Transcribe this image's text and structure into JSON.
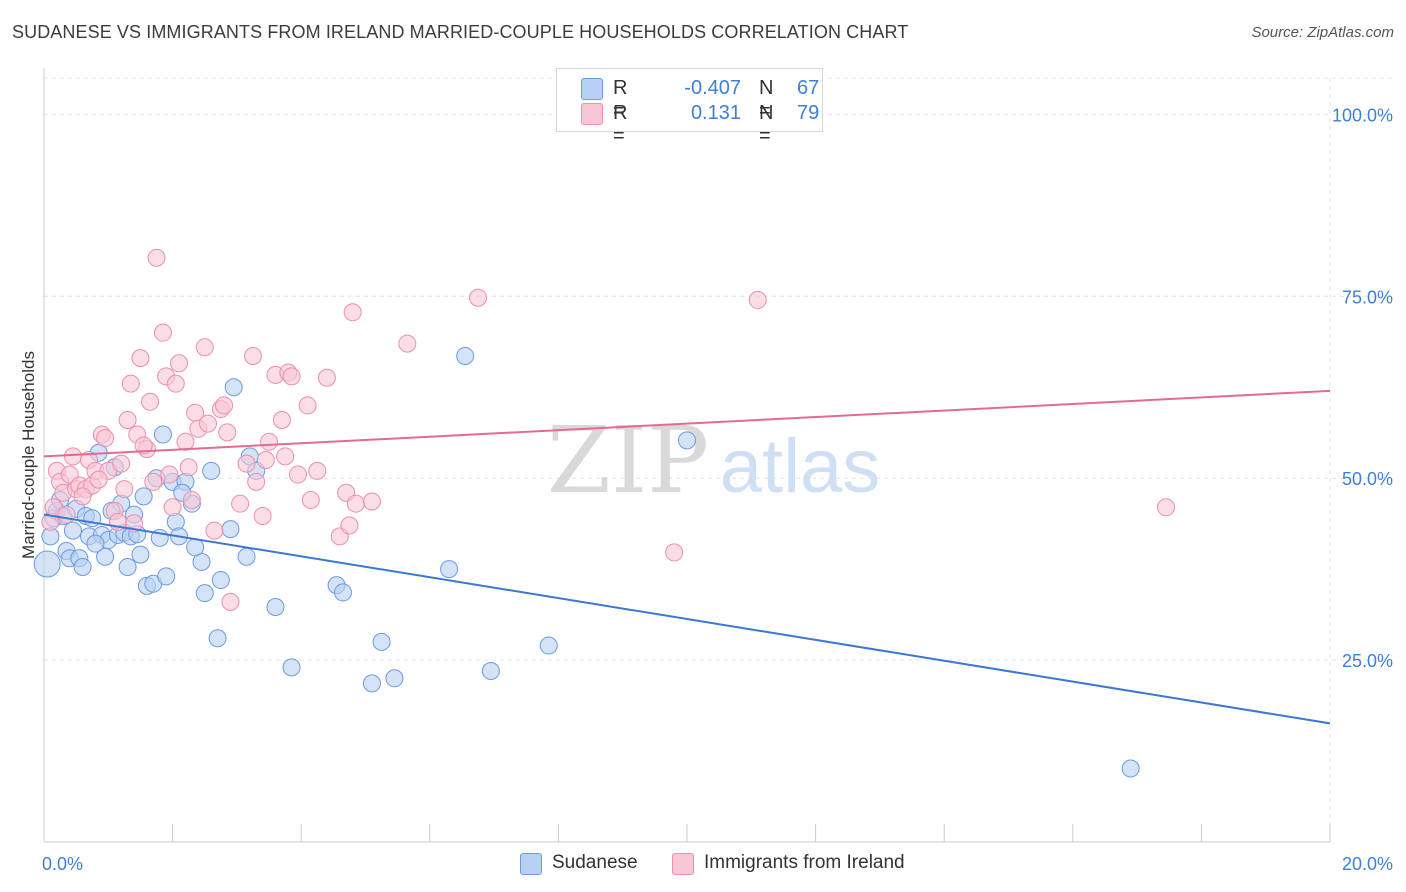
{
  "title": "SUDANESE VS IMMIGRANTS FROM IRELAND MARRIED-COUPLE HOUSEHOLDS CORRELATION CHART",
  "source": "Source: ZipAtlas.com",
  "watermark": {
    "zip": "ZIP",
    "atlas": "atlas"
  },
  "legend": {
    "rows": [
      {
        "r_label": "R =",
        "r_value": "-0.407",
        "n_label": "N =",
        "n_value": "67"
      },
      {
        "r_label": "R =",
        "r_value": "0.131",
        "n_label": "N =",
        "n_value": "79"
      }
    ]
  },
  "bottom_legend": {
    "series1": "Sudanese",
    "series2": "Immigrants from Ireland"
  },
  "colors": {
    "blue_fill": "#b8d0f3",
    "blue_stroke": "#6b9be0",
    "blue_line": "#3a78d4",
    "pink_fill": "#f9c6d6",
    "pink_stroke": "#ec8fae",
    "pink_line": "#e46a94",
    "tick_blue": "#3f7fd6",
    "grid": "#e4e4e4"
  },
  "chart_data": {
    "type": "scatter",
    "title": "SUDANESE VS IMMIGRANTS FROM IRELAND MARRIED-COUPLE HOUSEHOLDS CORRELATION CHART",
    "xlabel": "",
    "ylabel": "Married-couple Households",
    "xlim": [
      0,
      20
    ],
    "ylim": [
      0,
      105
    ],
    "x_ticks": [
      {
        "value": 0,
        "label": "0.0%"
      },
      {
        "value": 20,
        "label": "20.0%"
      }
    ],
    "y_ticks": [
      {
        "value": 25,
        "label": "25.0%"
      },
      {
        "value": 50,
        "label": "50.0%"
      },
      {
        "value": 75,
        "label": "75.0%"
      },
      {
        "value": 100,
        "label": "100.0%"
      }
    ],
    "series": [
      {
        "name": "Sudanese",
        "color": "blue",
        "r": -0.407,
        "n": 67,
        "trend": {
          "x0": 0,
          "y0": 45.0,
          "x1": 20,
          "y1": 16.3
        },
        "points": [
          [
            0.05,
            38.2
          ],
          [
            0.1,
            42.0
          ],
          [
            0.15,
            44.5
          ],
          [
            0.2,
            45.5
          ],
          [
            0.3,
            44.8
          ],
          [
            0.35,
            40.0
          ],
          [
            0.4,
            39.0
          ],
          [
            0.5,
            45.8
          ],
          [
            0.55,
            39.0
          ],
          [
            0.6,
            37.8
          ],
          [
            0.65,
            44.8
          ],
          [
            0.7,
            42.0
          ],
          [
            0.75,
            44.5
          ],
          [
            0.85,
            53.5
          ],
          [
            0.9,
            42.2
          ],
          [
            0.95,
            39.2
          ],
          [
            1.0,
            41.5
          ],
          [
            1.1,
            51.5
          ],
          [
            1.15,
            42.2
          ],
          [
            1.2,
            46.5
          ],
          [
            1.25,
            42.5
          ],
          [
            1.3,
            37.8
          ],
          [
            1.35,
            42.0
          ],
          [
            1.4,
            45.0
          ],
          [
            1.45,
            42.3
          ],
          [
            1.5,
            39.5
          ],
          [
            1.6,
            35.2
          ],
          [
            1.7,
            35.5
          ],
          [
            1.8,
            41.8
          ],
          [
            1.85,
            56.0
          ],
          [
            1.9,
            36.5
          ],
          [
            2.0,
            49.5
          ],
          [
            2.05,
            44.0
          ],
          [
            2.1,
            42.0
          ],
          [
            2.2,
            49.5
          ],
          [
            2.3,
            46.5
          ],
          [
            2.45,
            38.5
          ],
          [
            2.5,
            34.2
          ],
          [
            2.6,
            51.0
          ],
          [
            2.7,
            28.0
          ],
          [
            2.9,
            43.0
          ],
          [
            2.95,
            62.5
          ],
          [
            3.2,
            53.0
          ],
          [
            3.3,
            51.0
          ],
          [
            3.6,
            32.3
          ],
          [
            3.85,
            24.0
          ],
          [
            4.55,
            35.3
          ],
          [
            4.65,
            34.3
          ],
          [
            5.1,
            21.8
          ],
          [
            5.25,
            27.5
          ],
          [
            5.45,
            22.5
          ],
          [
            6.3,
            37.5
          ],
          [
            6.55,
            66.8
          ],
          [
            6.95,
            23.5
          ],
          [
            7.85,
            27.0
          ],
          [
            10.0,
            55.2
          ],
          [
            16.9,
            10.1
          ],
          [
            0.25,
            47.0
          ],
          [
            1.05,
            45.5
          ],
          [
            1.55,
            47.5
          ],
          [
            0.45,
            42.8
          ],
          [
            2.35,
            40.5
          ],
          [
            3.15,
            39.2
          ],
          [
            1.75,
            50.0
          ],
          [
            2.15,
            48.0
          ],
          [
            0.8,
            41.0
          ],
          [
            2.75,
            36.0
          ]
        ]
      },
      {
        "name": "Immigrants from Ireland",
        "color": "pink",
        "r": 0.131,
        "n": 79,
        "trend": {
          "x0": 0,
          "y0": 53.0,
          "x1": 20,
          "y1": 62.0
        },
        "points": [
          [
            0.1,
            44.0
          ],
          [
            0.15,
            46.0
          ],
          [
            0.2,
            51.0
          ],
          [
            0.25,
            49.5
          ],
          [
            0.3,
            48.0
          ],
          [
            0.4,
            50.5
          ],
          [
            0.45,
            53.0
          ],
          [
            0.5,
            48.5
          ],
          [
            0.55,
            49.0
          ],
          [
            0.65,
            48.5
          ],
          [
            0.7,
            52.5
          ],
          [
            0.75,
            49.0
          ],
          [
            0.8,
            51.0
          ],
          [
            0.9,
            56.0
          ],
          [
            0.95,
            55.5
          ],
          [
            1.0,
            51.0
          ],
          [
            1.1,
            45.5
          ],
          [
            1.15,
            44.0
          ],
          [
            1.2,
            52.0
          ],
          [
            1.3,
            58.0
          ],
          [
            1.35,
            63.0
          ],
          [
            1.4,
            43.8
          ],
          [
            1.45,
            56.0
          ],
          [
            1.5,
            66.5
          ],
          [
            1.6,
            54.0
          ],
          [
            1.65,
            60.5
          ],
          [
            1.7,
            49.5
          ],
          [
            1.75,
            80.3
          ],
          [
            1.85,
            70.0
          ],
          [
            1.9,
            64.0
          ],
          [
            2.0,
            46.0
          ],
          [
            2.05,
            63.0
          ],
          [
            2.1,
            65.8
          ],
          [
            2.2,
            55.0
          ],
          [
            2.3,
            47.0
          ],
          [
            2.35,
            59.0
          ],
          [
            2.4,
            56.8
          ],
          [
            2.5,
            68.0
          ],
          [
            2.55,
            57.5
          ],
          [
            2.65,
            42.8
          ],
          [
            2.75,
            59.5
          ],
          [
            2.8,
            60.0
          ],
          [
            2.85,
            56.3
          ],
          [
            2.9,
            33.0
          ],
          [
            3.05,
            46.5
          ],
          [
            3.15,
            52.0
          ],
          [
            3.25,
            66.8
          ],
          [
            3.3,
            49.5
          ],
          [
            3.4,
            44.8
          ],
          [
            3.5,
            55.0
          ],
          [
            3.6,
            64.2
          ],
          [
            3.7,
            58.0
          ],
          [
            3.75,
            53.0
          ],
          [
            3.8,
            64.5
          ],
          [
            3.85,
            64.0
          ],
          [
            3.95,
            50.5
          ],
          [
            4.1,
            60.0
          ],
          [
            4.15,
            47.0
          ],
          [
            4.25,
            51.0
          ],
          [
            4.4,
            63.8
          ],
          [
            4.6,
            42.0
          ],
          [
            4.7,
            48.0
          ],
          [
            4.75,
            43.5
          ],
          [
            4.8,
            72.8
          ],
          [
            4.85,
            46.5
          ],
          [
            5.1,
            46.8
          ],
          [
            5.65,
            68.5
          ],
          [
            6.75,
            74.8
          ],
          [
            9.8,
            39.8
          ],
          [
            11.1,
            74.5
          ],
          [
            17.45,
            46.0
          ],
          [
            0.35,
            45.0
          ],
          [
            0.6,
            47.5
          ],
          [
            1.25,
            48.5
          ],
          [
            1.55,
            54.5
          ],
          [
            2.25,
            51.5
          ],
          [
            0.85,
            49.8
          ],
          [
            1.95,
            50.5
          ],
          [
            3.45,
            52.5
          ]
        ]
      }
    ]
  }
}
